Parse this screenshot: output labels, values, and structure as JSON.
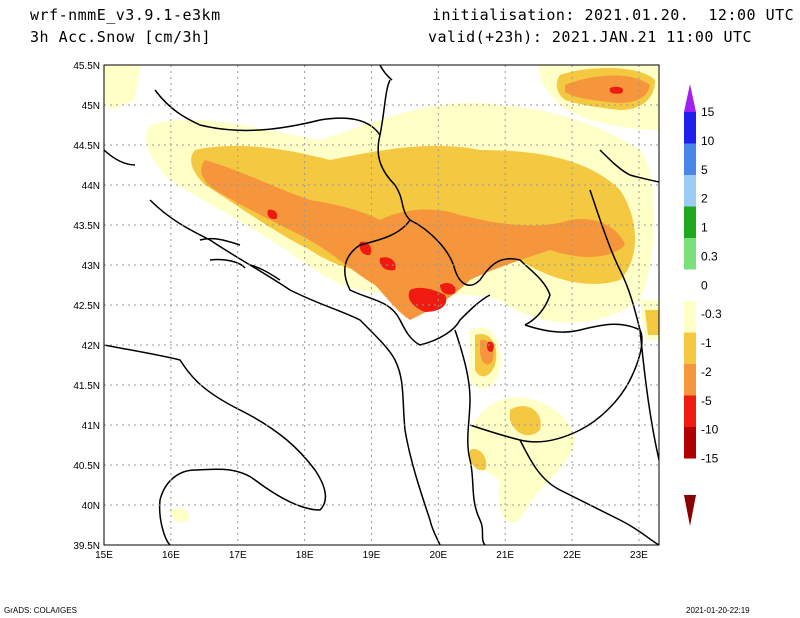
{
  "header": {
    "model": "wrf-nmmE_v3.9.1-e3km",
    "field": "3h Acc.Snow [cm/3h]",
    "init": "initialisation: 2021.01.20.  12:00 UTC",
    "valid": "valid(+23h): 2021.JAN.21 11:00 UTC"
  },
  "map": {
    "lon_range": [
      15,
      23.3
    ],
    "lat_range": [
      39.5,
      45.5
    ],
    "lon_labels": [
      "15E",
      "16E",
      "17E",
      "18E",
      "19E",
      "20E",
      "21E",
      "22E",
      "23E"
    ],
    "lat_labels": [
      "39.5N",
      "40N",
      "40.5N",
      "41N",
      "41.5N",
      "42N",
      "42.5N",
      "43N",
      "43.5N",
      "44N",
      "44.5N",
      "45N",
      "45.5N"
    ],
    "grid": "dotted"
  },
  "colorbar": {
    "labels": [
      "15",
      "10",
      "5",
      "2",
      "1",
      "0.3",
      "0",
      "-0.3",
      "-1",
      "-2",
      "-5",
      "-10",
      "-15"
    ],
    "colors": [
      "#2020ee",
      "#4a86e8",
      "#9ccbf4",
      "#1fa81f",
      "#7be07b",
      "#ffffff",
      "#ffffc8",
      "#f5c842",
      "#f5953c",
      "#ef1a10",
      "#b00000"
    ],
    "top_arrow_color": "#a020f0",
    "bottom_arrow_color": "#8a0000"
  },
  "footer": {
    "left": "GrADS: COLA/IGES",
    "right": "2021-01-20-22:19"
  }
}
